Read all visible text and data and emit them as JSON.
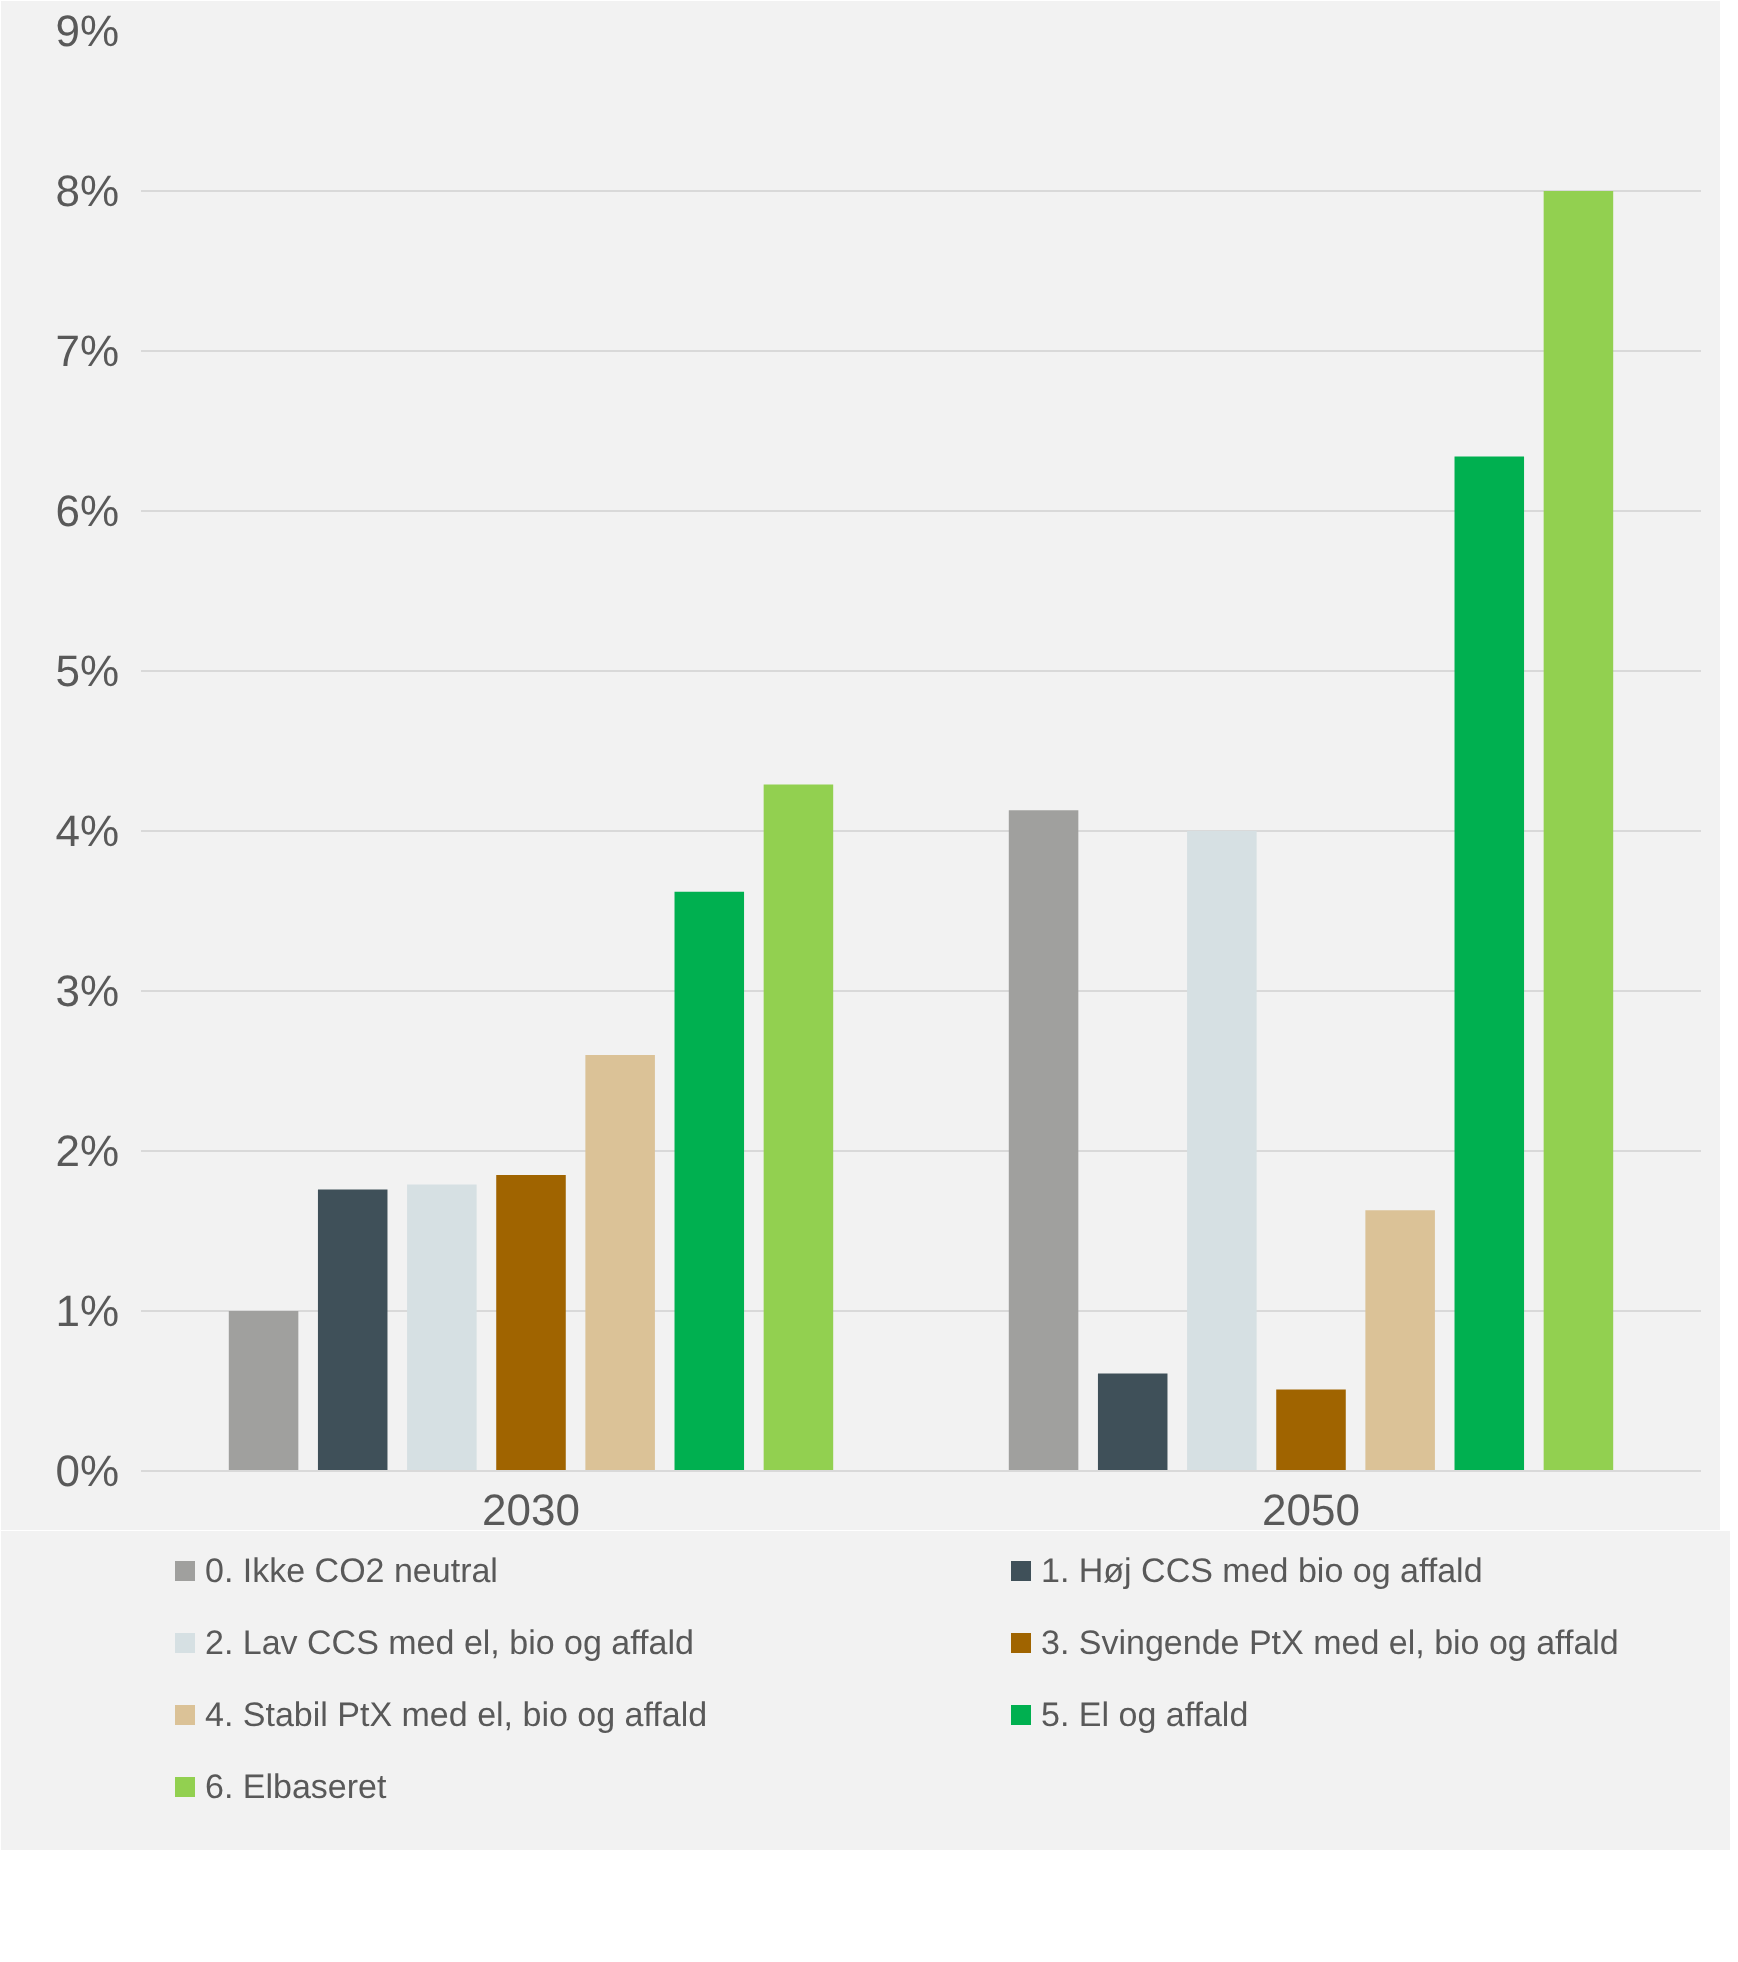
{
  "chart_data": {
    "type": "bar",
    "categories": [
      "2030",
      "2050"
    ],
    "series": [
      {
        "name": "0. Ikke CO2 neutral",
        "color": "#a0a09e",
        "values": [
          1.0,
          4.13
        ]
      },
      {
        "name": "1. Høj CCS med bio og affald",
        "color": "#3f5059",
        "values": [
          1.76,
          0.61
        ]
      },
      {
        "name": "2. Lav CCS med el, bio og affald",
        "color": "#d6e0e3",
        "values": [
          1.79,
          4.0
        ]
      },
      {
        "name": "3. Svingende PtX med el, bio og affald",
        "color": "#a06400",
        "values": [
          1.85,
          0.51
        ]
      },
      {
        "name": "4. Stabil PtX med el, bio og affald",
        "color": "#dbc297",
        "values": [
          2.6,
          1.63
        ]
      },
      {
        "name": "5. El og affald",
        "color": "#00b050",
        "values": [
          3.62,
          6.34
        ]
      },
      {
        "name": "6. Elbaseret",
        "color": "#92d050",
        "values": [
          4.29,
          8.0
        ]
      }
    ],
    "ylim": [
      0,
      9
    ],
    "yticks": [
      {
        "value": 0,
        "label": "0%"
      },
      {
        "value": 1,
        "label": "1%"
      },
      {
        "value": 2,
        "label": "2%"
      },
      {
        "value": 3,
        "label": "3%"
      },
      {
        "value": 4,
        "label": "4%"
      },
      {
        "value": 5,
        "label": "5%"
      },
      {
        "value": 6,
        "label": "6%"
      },
      {
        "value": 7,
        "label": "7%"
      },
      {
        "value": 8,
        "label": "8%"
      },
      {
        "value": 9,
        "label": "9%"
      }
    ],
    "grid": "y",
    "legend": "bottom"
  }
}
